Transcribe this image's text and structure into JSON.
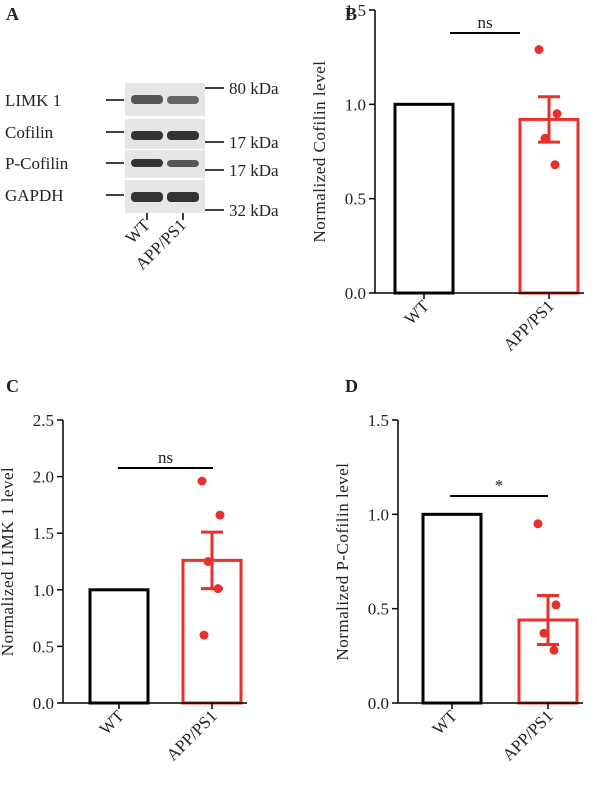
{
  "blot_panel": {
    "panel_label": "A",
    "proteins": [
      "LIMK 1",
      "Cofilin",
      "P-Cofilin",
      "GAPDH"
    ],
    "sizes": [
      "80 kDa",
      "17 kDa",
      "17 kDa",
      "32 kDa"
    ],
    "lanes": [
      "WT",
      "APP/PS1"
    ]
  },
  "chart_data": [
    {
      "type": "bar",
      "panel_label": "B",
      "ylabel": "Normalized Cofilin level",
      "categories": [
        "WT",
        "APP/PS1"
      ],
      "values": [
        1.0,
        0.92
      ],
      "errors": [
        null,
        0.12
      ],
      "colors": [
        "#000000",
        "#e8312a"
      ],
      "points": [
        1.29,
        0.95,
        0.82,
        0.68
      ],
      "significance": "ns",
      "ylim": [
        0,
        1.5
      ],
      "yticks": [
        {
          "value": 0,
          "label": "0.0"
        },
        {
          "value": 0.5,
          "label": "0.5"
        },
        {
          "value": 1,
          "label": "1.0"
        },
        {
          "value": 1.5,
          "label": "1.5"
        }
      ]
    },
    {
      "type": "bar",
      "panel_label": "C",
      "ylabel": "Normalized LIMK 1 level",
      "categories": [
        "WT",
        "APP/PS1"
      ],
      "values": [
        1.0,
        1.26
      ],
      "errors": [
        null,
        0.25
      ],
      "colors": [
        "#000000",
        "#e8312a"
      ],
      "points": [
        1.96,
        1.66,
        1.25,
        1.01,
        0.6
      ],
      "significance": "ns",
      "ylim": [
        0,
        2.5
      ],
      "yticks": [
        {
          "value": 0,
          "label": "0.0"
        },
        {
          "value": 0.5,
          "label": "0.5"
        },
        {
          "value": 1,
          "label": "1.0"
        },
        {
          "value": 1.5,
          "label": "1.5"
        },
        {
          "value": 2,
          "label": "2.0"
        },
        {
          "value": 2.5,
          "label": "2.5"
        }
      ]
    },
    {
      "type": "bar",
      "panel_label": "D",
      "ylabel": "Normalized P-Cofilin level",
      "categories": [
        "WT",
        "APP/PS1"
      ],
      "values": [
        1.0,
        0.44
      ],
      "errors": [
        null,
        0.13
      ],
      "colors": [
        "#000000",
        "#e8312a"
      ],
      "points": [
        0.95,
        0.52,
        0.37,
        0.28
      ],
      "significance": "*",
      "ylim": [
        0,
        1.5
      ],
      "yticks": [
        {
          "value": 0,
          "label": "0.0"
        },
        {
          "value": 0.5,
          "label": "0.5"
        },
        {
          "value": 1,
          "label": "1.0"
        },
        {
          "value": 1.5,
          "label": "1.5"
        }
      ]
    }
  ]
}
